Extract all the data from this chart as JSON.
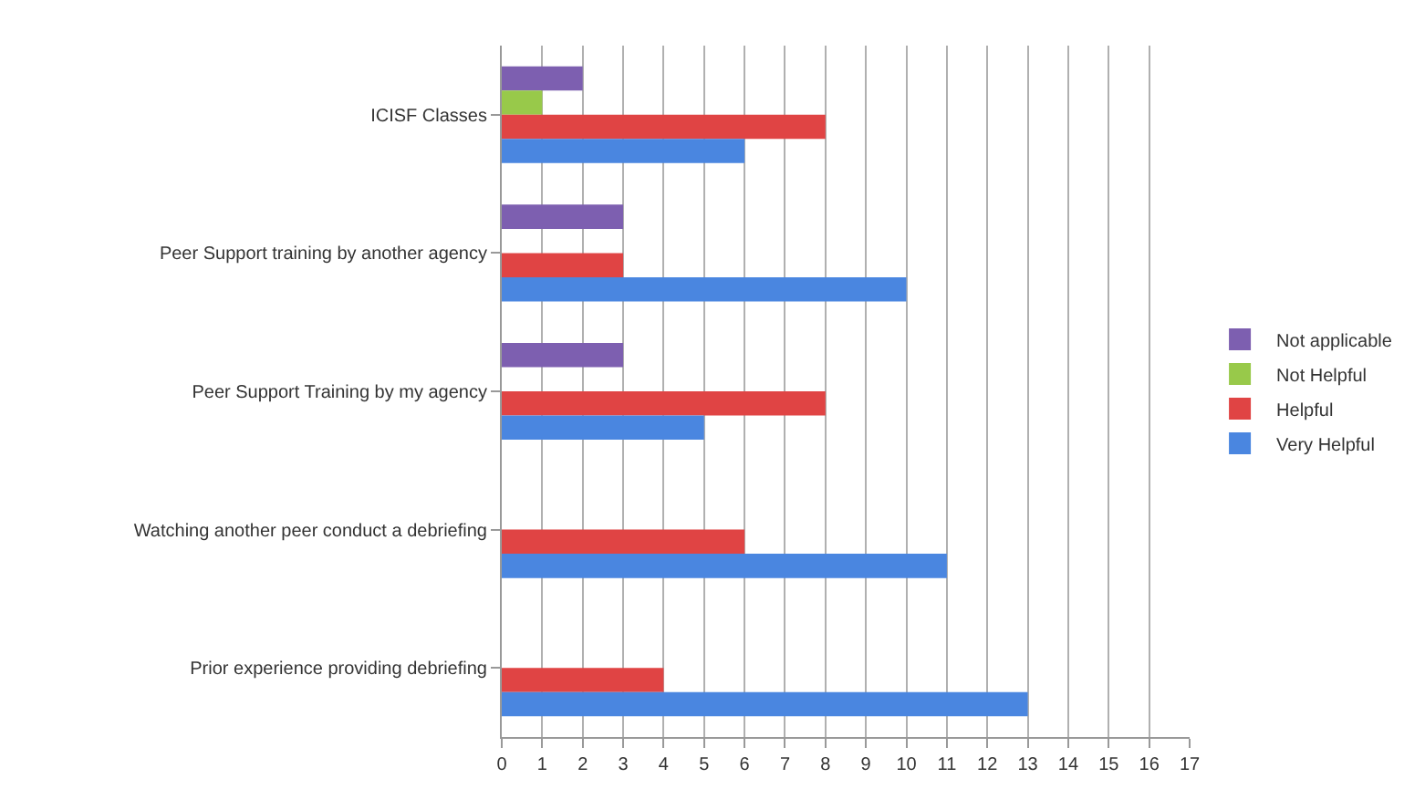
{
  "chart_data": {
    "type": "bar",
    "orientation": "horizontal",
    "categories": [
      "ICISF Classes",
      "Peer Support training by another agency",
      "Peer Support Training by my agency",
      "Watching another peer conduct a debriefing",
      "Prior experience providing debriefing"
    ],
    "series": [
      {
        "name": "Not applicable",
        "color": "#7d5fb0",
        "values": [
          2,
          3,
          3,
          0,
          0
        ]
      },
      {
        "name": "Not Helpful",
        "color": "#98c94a",
        "values": [
          1,
          0,
          0,
          0,
          0
        ]
      },
      {
        "name": "Helpful",
        "color": "#e04444",
        "values": [
          8,
          3,
          8,
          6,
          4
        ]
      },
      {
        "name": "Very Helpful",
        "color": "#4a86e0",
        "values": [
          6,
          10,
          5,
          11,
          13
        ]
      }
    ],
    "xlim": [
      0,
      17
    ],
    "xticks": [
      0,
      1,
      2,
      3,
      4,
      5,
      6,
      7,
      8,
      9,
      10,
      11,
      12,
      13,
      14,
      15,
      16,
      17
    ],
    "grid": "x",
    "legend": "right"
  }
}
